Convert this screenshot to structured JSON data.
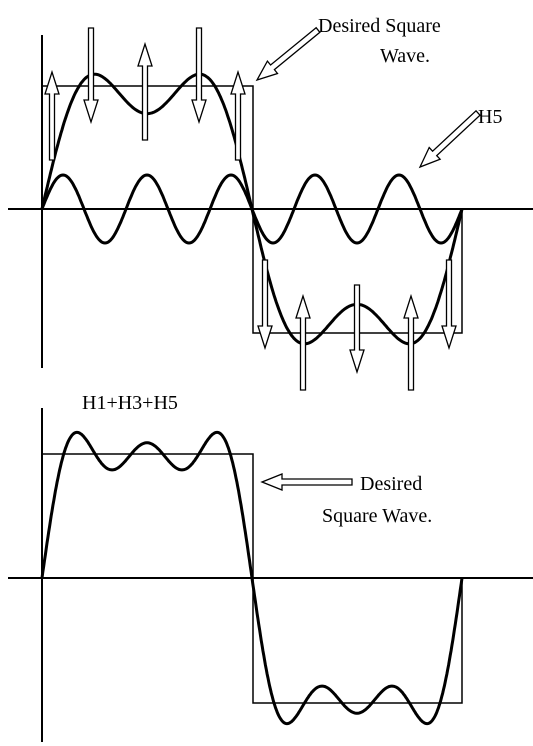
{
  "top_panel": {
    "label_desired_square_line1": "Desired Square",
    "label_desired_square_line2": "Wave.",
    "label_h5": "H5"
  },
  "bottom_panel": {
    "label_sum": "H1+H3+H5",
    "label_desired_square_line1": "Desired",
    "label_desired_square_line2": "Square Wave."
  },
  "colors": {
    "ink": "#000000",
    "background": "#ffffff"
  }
}
